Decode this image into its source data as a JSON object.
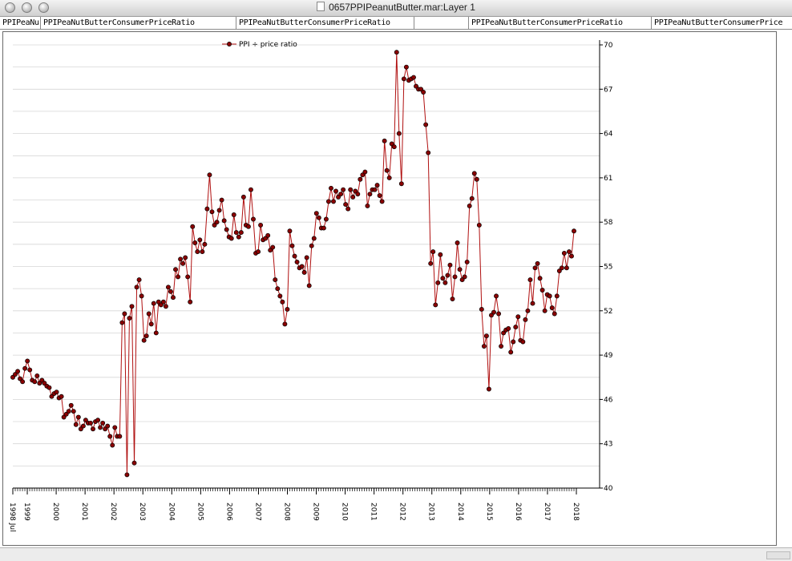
{
  "window": {
    "title": "0657PPIPeanutButter.mar:Layer 1",
    "tabs": [
      "PPIPeaNu",
      "PPIPeaNutButterConsumerPriceRatio",
      "PPIPeaNutButterConsumerPriceRatio",
      "",
      "PPIPeaNutButterConsumerPriceRatio",
      "PPIPeaNutButterConsumerPrice"
    ]
  },
  "colors": {
    "series": "#b01010",
    "marker": "#8b0000",
    "grid": "#d6d6d6",
    "axis": "#000000"
  },
  "chart_data": {
    "type": "line",
    "title": "",
    "xlabel": "",
    "ylabel": "",
    "legend": {
      "label": "PPI ÷ price ratio",
      "placement": "top-left"
    },
    "grid": true,
    "y_axis_side": "right",
    "ylim": [
      40,
      70
    ],
    "yticks": [
      40,
      43,
      46,
      49,
      52,
      55,
      58,
      61,
      64,
      67,
      70
    ],
    "x_start": "1998-07",
    "x_end": "2017-12",
    "xtick_labels": [
      {
        "label": "1998 Jul",
        "date": "1998-07"
      },
      {
        "label": "1999",
        "date": "1999-01"
      },
      {
        "label": "2000",
        "date": "2000-01"
      },
      {
        "label": "2001",
        "date": "2001-01"
      },
      {
        "label": "2002",
        "date": "2002-01"
      },
      {
        "label": "2003",
        "date": "2003-01"
      },
      {
        "label": "2004",
        "date": "2004-01"
      },
      {
        "label": "2005",
        "date": "2005-01"
      },
      {
        "label": "2006",
        "date": "2006-01"
      },
      {
        "label": "2007",
        "date": "2007-01"
      },
      {
        "label": "2008",
        "date": "2008-01"
      },
      {
        "label": "2009",
        "date": "2009-01"
      },
      {
        "label": "2010",
        "date": "2010-01"
      },
      {
        "label": "2011",
        "date": "2011-01"
      },
      {
        "label": "2012",
        "date": "2012-01"
      },
      {
        "label": "2013",
        "date": "2013-01"
      },
      {
        "label": "2014",
        "date": "2014-01"
      },
      {
        "label": "2015",
        "date": "2015-01"
      },
      {
        "label": "2016",
        "date": "2016-01"
      },
      {
        "label": "2017",
        "date": "2017-01"
      },
      {
        "label": "2018",
        "date": "2018-01"
      }
    ],
    "series": [
      {
        "name": "PPI ÷ price ratio",
        "values": [
          47.5,
          47.7,
          47.9,
          47.4,
          47.2,
          48.1,
          48.6,
          48.0,
          47.3,
          47.2,
          47.6,
          47.1,
          47.3,
          47.1,
          46.9,
          46.8,
          46.2,
          46.4,
          46.5,
          46.1,
          46.2,
          44.8,
          45.0,
          45.2,
          45.6,
          45.2,
          44.3,
          44.8,
          44.0,
          44.2,
          44.6,
          44.4,
          44.4,
          44.0,
          44.5,
          44.6,
          44.1,
          44.4,
          44.0,
          44.2,
          43.5,
          42.9,
          44.1,
          43.5,
          43.5,
          51.2,
          51.8,
          40.9,
          51.5,
          52.3,
          41.7,
          53.6,
          54.1,
          53.0,
          50.0,
          50.3,
          51.8,
          51.1,
          52.5,
          50.5,
          52.6,
          52.4,
          52.6,
          52.3,
          53.6,
          53.3,
          52.9,
          54.8,
          54.3,
          55.5,
          55.2,
          55.6,
          54.3,
          52.6,
          57.7,
          56.6,
          56.0,
          56.8,
          56.0,
          56.5,
          58.9,
          61.2,
          58.7,
          57.8,
          58.0,
          58.8,
          59.5,
          58.1,
          57.5,
          57.0,
          56.9,
          58.5,
          57.3,
          57.0,
          57.3,
          59.7,
          57.8,
          57.7,
          60.2,
          58.2,
          55.9,
          56.0,
          57.8,
          56.8,
          56.9,
          57.1,
          56.1,
          56.3,
          54.1,
          53.5,
          53.0,
          52.6,
          51.1,
          52.1,
          57.4,
          56.4,
          55.7,
          55.3,
          54.9,
          55.0,
          54.6,
          55.6,
          53.7,
          56.4,
          56.9,
          58.6,
          58.3,
          57.6,
          57.6,
          58.2,
          59.4,
          60.3,
          59.4,
          60.1,
          59.7,
          59.9,
          60.2,
          59.2,
          58.9,
          60.2,
          59.7,
          60.1,
          59.9,
          60.9,
          61.2,
          61.4,
          59.1,
          59.9,
          60.2,
          60.2,
          60.5,
          59.8,
          59.4,
          63.5,
          61.5,
          61.0,
          63.3,
          63.1,
          69.5,
          64.0,
          60.6,
          67.7,
          68.5,
          67.6,
          67.7,
          67.8,
          67.2,
          67.0,
          67.0,
          66.8,
          64.6,
          62.7,
          55.2,
          56.0,
          52.4,
          53.9,
          55.8,
          54.2,
          53.9,
          54.4,
          55.1,
          52.8,
          54.3,
          56.6,
          54.8,
          54.1,
          54.3,
          55.3,
          59.1,
          59.6,
          61.3,
          60.9,
          57.8,
          52.1,
          49.6,
          50.3,
          46.7,
          51.7,
          51.9,
          53.0,
          51.8,
          49.6,
          50.5,
          50.7,
          50.8,
          49.2,
          49.9,
          50.9,
          51.6,
          50.0,
          49.9,
          51.4,
          52.0,
          54.1,
          52.5,
          54.9,
          55.2,
          54.2,
          53.4,
          52.0,
          53.1,
          53.0,
          52.2,
          51.8,
          53.0,
          54.7,
          54.9,
          55.9,
          54.9,
          56.0,
          55.7,
          57.4
        ]
      }
    ]
  }
}
